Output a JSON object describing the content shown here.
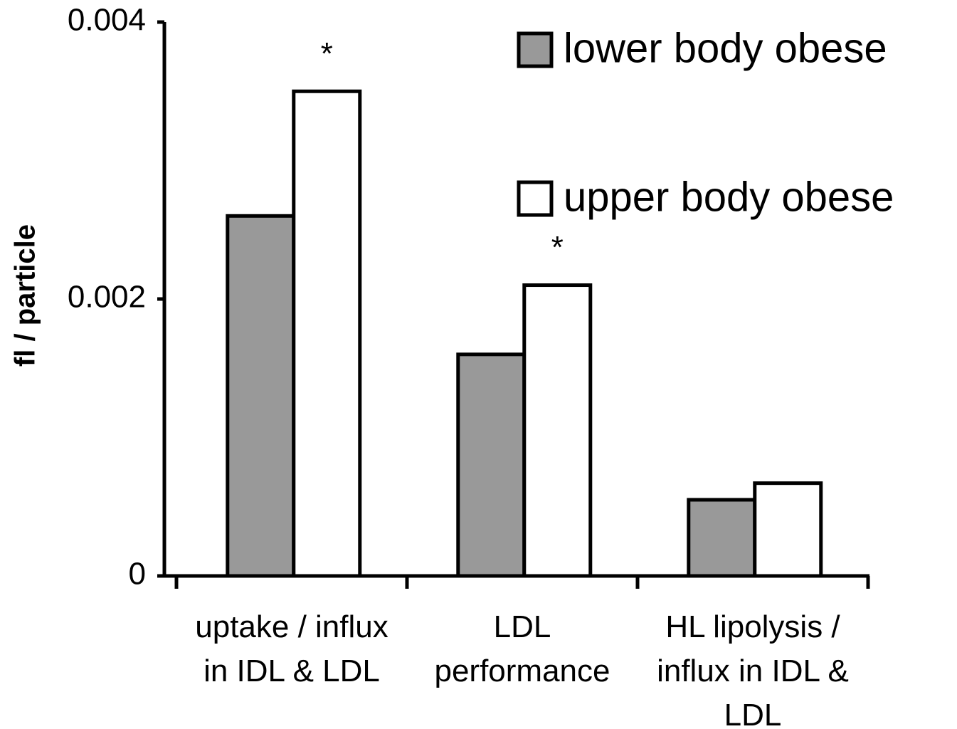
{
  "chart_data": {
    "type": "bar",
    "y_label": "fl / particle",
    "categories": [
      "uptake / influx\nin IDL & LDL",
      "LDL\nperformance",
      "HL lipolysis /\ninflux in IDL &\nLDL"
    ],
    "series": [
      {
        "name": "lower body obese",
        "color": "#999999",
        "values": [
          0.0026,
          0.0016,
          0.00055
        ]
      },
      {
        "name": "upper body obese",
        "color": "#ffffff",
        "values": [
          0.0035,
          0.0021,
          0.00067
        ],
        "annotations": [
          "*",
          "*",
          null
        ]
      }
    ],
    "ylim": [
      0,
      0.004
    ],
    "yticks": [
      0,
      0.002,
      0.004
    ],
    "grid": false,
    "legend": "upper right"
  }
}
